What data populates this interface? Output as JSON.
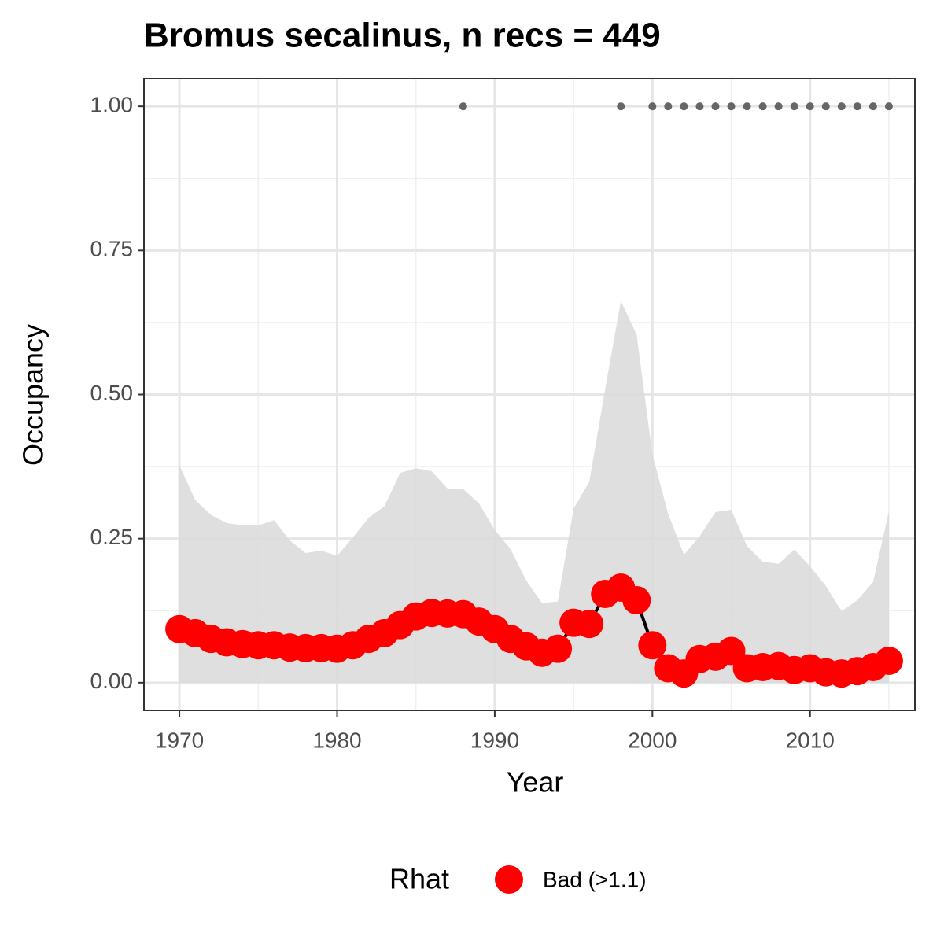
{
  "chart_data": {
    "type": "line",
    "title": "Bromus secalinus, n recs = 449",
    "x_label": "Year",
    "y_label": "Occupancy",
    "xlim": [
      1967.75,
      2016.65
    ],
    "ylim": [
      -0.048,
      1.048
    ],
    "xticks": [
      1970,
      1980,
      1990,
      2000,
      2010
    ],
    "xminor": [
      1975,
      1985,
      1995,
      2005,
      2015
    ],
    "yticks": [
      {
        "value": 0,
        "label": "0.00"
      },
      {
        "value": 0.25,
        "label": "0.25"
      },
      {
        "value": 0.5,
        "label": "0.50"
      },
      {
        "value": 0.75,
        "label": "0.75"
      },
      {
        "value": 1,
        "label": "1.00"
      }
    ],
    "yminor": [
      0.125,
      0.375,
      0.625,
      0.875
    ],
    "grid": true,
    "x": [
      1970,
      1971,
      1972,
      1973,
      1974,
      1975,
      1976,
      1977,
      1978,
      1979,
      1980,
      1981,
      1982,
      1983,
      1984,
      1985,
      1986,
      1987,
      1988,
      1989,
      1990,
      1991,
      1992,
      1993,
      1994,
      1995,
      1996,
      1997,
      1998,
      1999,
      2000,
      2001,
      2002,
      2003,
      2004,
      2005,
      2006,
      2007,
      2008,
      2009,
      2010,
      2011,
      2012,
      2013,
      2014,
      2015
    ],
    "values": [
      0.093,
      0.086,
      0.076,
      0.07,
      0.067,
      0.065,
      0.065,
      0.061,
      0.06,
      0.06,
      0.059,
      0.065,
      0.076,
      0.086,
      0.1,
      0.115,
      0.121,
      0.12,
      0.119,
      0.106,
      0.093,
      0.076,
      0.063,
      0.052,
      0.059,
      0.104,
      0.102,
      0.154,
      0.165,
      0.143,
      0.065,
      0.025,
      0.016,
      0.041,
      0.045,
      0.055,
      0.025,
      0.027,
      0.029,
      0.022,
      0.025,
      0.018,
      0.016,
      0.02,
      0.027,
      0.038
    ],
    "upper": [
      0.377,
      0.317,
      0.291,
      0.277,
      0.273,
      0.273,
      0.282,
      0.247,
      0.225,
      0.229,
      0.22,
      0.252,
      0.286,
      0.306,
      0.364,
      0.372,
      0.367,
      0.337,
      0.336,
      0.311,
      0.265,
      0.232,
      0.177,
      0.138,
      0.141,
      0.302,
      0.349,
      0.509,
      0.662,
      0.604,
      0.396,
      0.293,
      0.222,
      0.254,
      0.296,
      0.3,
      0.237,
      0.21,
      0.206,
      0.231,
      0.202,
      0.168,
      0.124,
      0.143,
      0.175,
      0.297
    ],
    "lower": [
      0,
      0,
      0,
      0,
      0,
      0,
      0,
      0,
      0,
      0,
      0,
      0,
      0,
      0,
      0,
      0,
      0,
      0,
      0,
      0,
      0,
      0,
      0,
      0,
      0,
      0,
      0,
      0,
      0,
      0,
      0,
      0,
      0,
      0,
      0,
      0,
      0,
      0,
      0,
      0,
      0,
      0,
      0,
      0,
      0,
      0
    ],
    "band_color": "#d9d9d9",
    "line_color": "#000000",
    "point_color": "#ff0000",
    "detections": {
      "x": [
        1988,
        1998,
        2000,
        2001,
        2002,
        2003,
        2004,
        2005,
        2006,
        2007,
        2008,
        2009,
        2010,
        2011,
        2012,
        2013,
        2014,
        2015
      ],
      "values": [
        1,
        1,
        1,
        1,
        1,
        1,
        1,
        1,
        1,
        1,
        1,
        1,
        1,
        1,
        1,
        1,
        1,
        1
      ],
      "color": "#666666"
    },
    "legend": {
      "title": "Rhat",
      "label": "Bad (>1.1)",
      "position": "bottom"
    }
  }
}
